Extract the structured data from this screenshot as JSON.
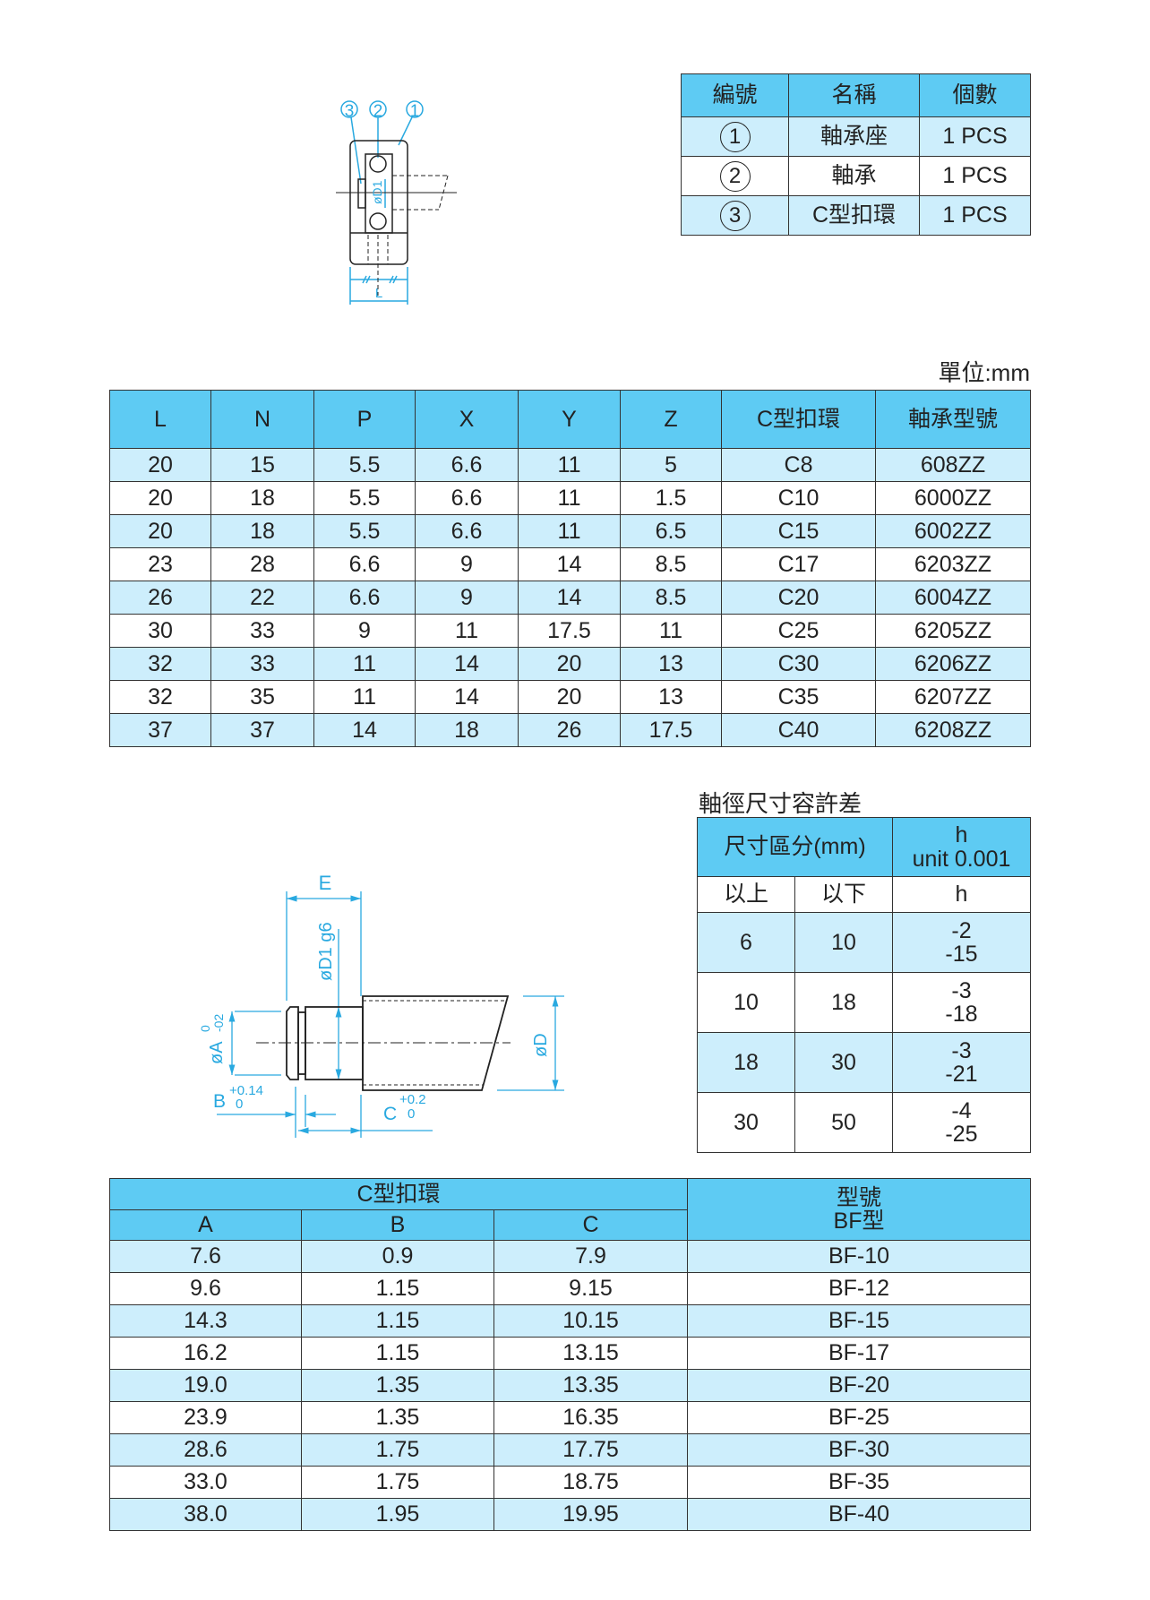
{
  "colors": {
    "header": "#5ecbf3",
    "row_alt": "#cdeefc",
    "dimension": "#29a9e0"
  },
  "bearing_drawing": {
    "callouts": [
      "3",
      "2",
      "1"
    ],
    "d1_label": "øD1",
    "l_label": "L"
  },
  "parts_table": {
    "headers": [
      "編號",
      "名稱",
      "個數"
    ],
    "rows": [
      {
        "no": "1",
        "name": "軸承座",
        "qty": "1 PCS"
      },
      {
        "no": "2",
        "name": "軸承",
        "qty": "1 PCS"
      },
      {
        "no": "3",
        "name": "C型扣環",
        "qty": "1 PCS"
      }
    ]
  },
  "unit_label": "單位:mm",
  "dimension_table": {
    "headers": [
      "L",
      "N",
      "P",
      "X",
      "Y",
      "Z",
      "C型扣環",
      "軸承型號"
    ],
    "rows": [
      [
        "20",
        "15",
        "5.5",
        "6.6",
        "11",
        "5",
        "C8",
        "608ZZ"
      ],
      [
        "20",
        "18",
        "5.5",
        "6.6",
        "11",
        "1.5",
        "C10",
        "6000ZZ"
      ],
      [
        "20",
        "18",
        "5.5",
        "6.6",
        "11",
        "6.5",
        "C15",
        "6002ZZ"
      ],
      [
        "23",
        "28",
        "6.6",
        "9",
        "14",
        "8.5",
        "C17",
        "6203ZZ"
      ],
      [
        "26",
        "22",
        "6.6",
        "9",
        "14",
        "8.5",
        "C20",
        "6004ZZ"
      ],
      [
        "30",
        "33",
        "9",
        "11",
        "17.5",
        "11",
        "C25",
        "6205ZZ"
      ],
      [
        "32",
        "33",
        "11",
        "14",
        "20",
        "13",
        "C30",
        "6206ZZ"
      ],
      [
        "32",
        "35",
        "11",
        "14",
        "20",
        "13",
        "C35",
        "6207ZZ"
      ],
      [
        "37",
        "37",
        "14",
        "18",
        "26",
        "17.5",
        "C40",
        "6208ZZ"
      ]
    ]
  },
  "shaft_drawing": {
    "e": "E",
    "d1g6": "øD1 g6",
    "a": "øA",
    "a_upper": "0",
    "a_lower": "-02",
    "d": "øD",
    "b": "B",
    "b_upper": "+0.14",
    "b_lower": "0",
    "c": "C",
    "c_upper": "+0.2",
    "c_lower": "0"
  },
  "tolerance": {
    "title": "軸徑尺寸容許差",
    "header_range": "尺寸區分(mm)",
    "header_h": "h",
    "header_unit": "unit 0.001",
    "sub": [
      "以上",
      "以下",
      "h"
    ],
    "rows": [
      {
        "from": "6",
        "to": "10",
        "upper": "-2",
        "lower": "-15"
      },
      {
        "from": "10",
        "to": "18",
        "upper": "-3",
        "lower": "-18"
      },
      {
        "from": "18",
        "to": "30",
        "upper": "-3",
        "lower": "-21"
      },
      {
        "from": "30",
        "to": "50",
        "upper": "-4",
        "lower": "-25"
      }
    ]
  },
  "ring_table": {
    "group_header": "C型扣環",
    "model_header": "型號",
    "model_sub": "BF型",
    "headers": [
      "A",
      "B",
      "C"
    ],
    "rows": [
      [
        "7.6",
        "0.9",
        "7.9",
        "BF-10"
      ],
      [
        "9.6",
        "1.15",
        "9.15",
        "BF-12"
      ],
      [
        "14.3",
        "1.15",
        "10.15",
        "BF-15"
      ],
      [
        "16.2",
        "1.15",
        "13.15",
        "BF-17"
      ],
      [
        "19.0",
        "1.35",
        "13.35",
        "BF-20"
      ],
      [
        "23.9",
        "1.35",
        "16.35",
        "BF-25"
      ],
      [
        "28.6",
        "1.75",
        "17.75",
        "BF-30"
      ],
      [
        "33.0",
        "1.75",
        "18.75",
        "BF-35"
      ],
      [
        "38.0",
        "1.95",
        "19.95",
        "BF-40"
      ]
    ]
  }
}
